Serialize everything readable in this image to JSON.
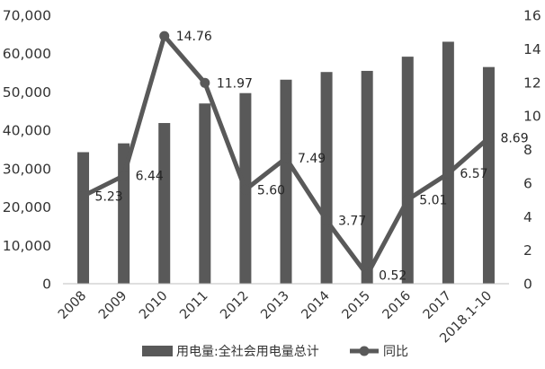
{
  "chart_data": {
    "type": "bar",
    "categories": [
      "2008",
      "2009",
      "2010",
      "2011",
      "2012",
      "2013",
      "2014",
      "2015",
      "2016",
      "2017",
      "2018.1-10"
    ],
    "series": [
      {
        "name": "用电量:全社会用电量总计",
        "type": "bar",
        "axis": "left",
        "color": "#595959",
        "values": [
          34300,
          36600,
          41900,
          47000,
          49700,
          53200,
          55200,
          55500,
          59200,
          63100,
          56500
        ]
      },
      {
        "name": "同比",
        "type": "line",
        "axis": "right",
        "color": "#595959",
        "values": [
          5.23,
          6.44,
          14.76,
          11.97,
          5.6,
          7.49,
          3.77,
          0.52,
          5.01,
          6.57,
          8.69
        ],
        "data_labels": [
          "5.23",
          "6.44",
          "14.76",
          "11.97",
          "5.60",
          "7.49",
          "3.77",
          "0.52",
          "5.01",
          "6.57",
          "8.69"
        ]
      }
    ],
    "y_left": {
      "ylim": [
        0,
        70000
      ],
      "ticks": [
        0,
        10000,
        20000,
        30000,
        40000,
        50000,
        60000,
        70000
      ],
      "tick_labels": [
        "0",
        "10,000",
        "20,000",
        "30,000",
        "40,000",
        "50,000",
        "60,000",
        "70,000"
      ]
    },
    "y_right": {
      "ylim": [
        0,
        16
      ],
      "ticks": [
        0,
        2,
        4,
        6,
        8,
        10,
        12,
        14,
        16
      ],
      "tick_labels": [
        "0",
        "2",
        "4",
        "6",
        "8",
        "10",
        "12",
        "14",
        "16"
      ]
    },
    "title": "",
    "xlabel": "",
    "ylabel": "",
    "grid": false,
    "legend_position": "bottom"
  }
}
